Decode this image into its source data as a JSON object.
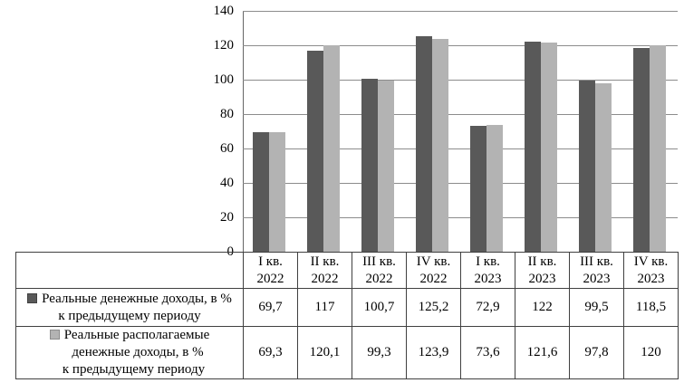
{
  "figure": {
    "background": "#ffffff"
  },
  "chart_data": {
    "type": "bar",
    "title": "",
    "xlabel": "",
    "ylabel": "",
    "ylim": [
      0,
      140
    ],
    "ytick_step": 20,
    "ytick_labels": [
      "0",
      "20",
      "40",
      "60",
      "80",
      "100",
      "120",
      "140"
    ],
    "grid": true,
    "gridline_color": "#8c8c8c",
    "axis_color": "#666666",
    "legend_position": "attached data table, left column",
    "categories": [
      {
        "quarter": "I кв.",
        "year": "2022"
      },
      {
        "quarter": "II кв.",
        "year": "2022"
      },
      {
        "quarter": "III кв.",
        "year": "2022"
      },
      {
        "quarter": "IV кв.",
        "year": "2022"
      },
      {
        "quarter": "I кв.",
        "year": "2023"
      },
      {
        "quarter": "II кв.",
        "year": "2023"
      },
      {
        "quarter": "III кв.",
        "year": "2023"
      },
      {
        "quarter": "IV кв.",
        "year": "2023"
      }
    ],
    "series": [
      {
        "name": "Реальные денежные доходы, в % к предыдущему периоду",
        "label_lines": [
          "Реальные денежные доходы, в %",
          "к предыдущему периоду"
        ],
        "color": "#595959",
        "marker_border": "#404040",
        "values": [
          69.7,
          117,
          100.7,
          125.2,
          72.9,
          122,
          99.5,
          118.5
        ],
        "display_values": [
          "69,7",
          "117",
          "100,7",
          "125,2",
          "72,9",
          "122",
          "99,5",
          "118,5"
        ]
      },
      {
        "name": "Реальные располагаемые денежные доходы, в % к предыдущему периоду",
        "label_lines": [
          "Реальные располагаемые",
          "денежные доходы, в %",
          "к предыдущему периоду"
        ],
        "color": "#b3b3b3",
        "marker_border": "#8c8c8c",
        "values": [
          69.3,
          120.1,
          99.3,
          123.9,
          73.6,
          121.6,
          97.8,
          120
        ],
        "display_values": [
          "69,3",
          "120,1",
          "99,3",
          "123,9",
          "73,6",
          "121,6",
          "97,8",
          "120"
        ]
      }
    ],
    "table_border_color": "#404040"
  }
}
